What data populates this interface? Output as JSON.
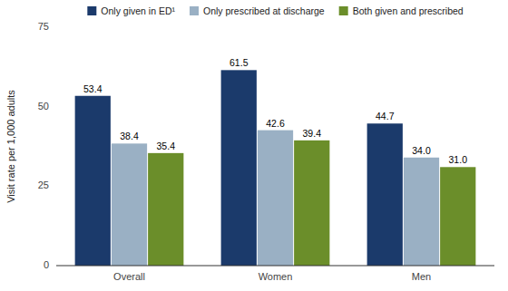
{
  "chart_data": {
    "type": "bar",
    "categories": [
      "Overall",
      "Women",
      "Men"
    ],
    "series": [
      {
        "name": "Only given in ED¹",
        "color": "#1b3a6b",
        "values": [
          53.4,
          61.5,
          44.7
        ]
      },
      {
        "name": "Only prescribed at discharge",
        "color": "#9ab0c4",
        "values": [
          38.4,
          42.6,
          34.0
        ],
        "value_labels": [
          "38.4",
          "42.6",
          "34.0"
        ]
      },
      {
        "name": "Both given and prescribed",
        "color": "#6b8e2a",
        "values": [
          35.4,
          39.4,
          31.0
        ],
        "value_labels": [
          "35.4",
          "39.4",
          "31.0"
        ]
      }
    ],
    "ylabel": "Visit rate per 1,000 adults",
    "ylim": [
      0,
      75
    ],
    "yticks": [
      0,
      25,
      50,
      75
    ],
    "grid": false,
    "legend": "top",
    "data_labels": true
  }
}
